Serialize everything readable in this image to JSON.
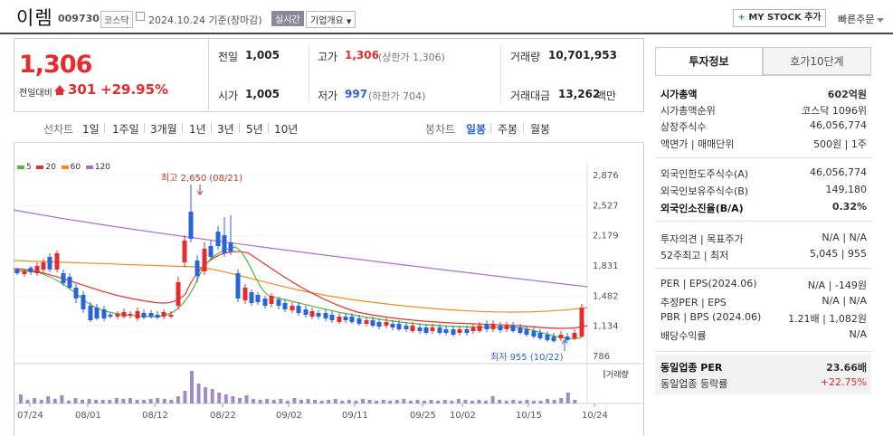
{
  "header": {
    "name": "이렘",
    "code": "009730",
    "market": "코스닥",
    "date": "2024.10.24 기준(장마감)",
    "live": "실시간",
    "overview": "기업개요",
    "mystock": "MY STOCK 추가",
    "quick": "빠른주문"
  },
  "price": {
    "current": "1,306",
    "prev_label": "전일대비",
    "change": "301",
    "pct": "+29.95%"
  },
  "quote": {
    "prev_l": "전일",
    "prev_v": "1,005",
    "open_l": "시가",
    "open_v": "1,005",
    "high_l": "고가",
    "high_v": "1,306",
    "high_sub": "(상한가 1,306)",
    "low_l": "저가",
    "low_v": "997",
    "low_sub": "(하한가 704)",
    "vol_l": "거래량",
    "vol_v": "10,701,953",
    "amt_l": "거래대금",
    "amt_v": "13,262",
    "amt_unit": "백만"
  },
  "tabs": {
    "line_chart": "선차트",
    "periods": [
      "1일",
      "1주일",
      "3개월",
      "1년",
      "3년",
      "5년",
      "10년"
    ],
    "candle_chart": "봉차트",
    "candle": [
      "일봉",
      "주봉",
      "월봉"
    ]
  },
  "legend": [
    {
      "label": "5",
      "color": "#53b53c"
    },
    {
      "label": "20",
      "color": "#e5322d"
    },
    {
      "label": "60",
      "color": "#f28c1a"
    },
    {
      "label": "120",
      "color": "#a96fd2"
    }
  ],
  "chart_data": {
    "type": "candlestick",
    "yticks": [
      "2,876",
      "2,527",
      "2,179",
      "1,831",
      "1,482",
      "1,134",
      "786"
    ],
    "xticks": [
      "07/24",
      "08/01",
      "08/12",
      "08/22",
      "09/02",
      "09/11",
      "09/25",
      "10/02",
      "10/15",
      "10/24"
    ],
    "high_annotation": "최고 2,650 (08/21)",
    "low_annotation": "최저 955 (10/22)",
    "volume_label": "거래량",
    "colors": {
      "up": "#e52b2b",
      "down": "#2b63d8",
      "volume": "#a08cc4"
    }
  },
  "side": {
    "tab_info": "투자정보",
    "tab_hoga": "호가10단계",
    "rows": [
      {
        "l": "시가총액",
        "v": "602억원",
        "bold": true
      },
      {
        "l": "시가총액순위",
        "v": "코스닥 1096위"
      },
      {
        "l": "상장주식수",
        "v": "46,056,774"
      },
      {
        "l": "액면가 | 매매단위",
        "v": "500원 | 1주"
      },
      {
        "l": "외국인한도주식수(A)",
        "v": "46,056,774"
      },
      {
        "l": "외국인보유주식수(B)",
        "v": "149,180"
      },
      {
        "l": "외국인소진율(B/A)",
        "v": "0.32%",
        "bold": true
      },
      {
        "l": "투자의견 | 목표주가",
        "v": "N/A | N/A"
      },
      {
        "l": "52주최고 | 최저",
        "v": "5,045 | 955"
      },
      {
        "l": "PER | EPS(2024.06)",
        "v": "N/A | -149원"
      },
      {
        "l": "추정PER | EPS",
        "v": "N/A | N/A"
      },
      {
        "l": "PBR | BPS (2024.06)",
        "v": "1.21배 | 1,082원"
      },
      {
        "l": "배당수익률",
        "v": "N/A"
      },
      {
        "l": "동일업종 PER",
        "v": "23.66배",
        "bold": true
      },
      {
        "l": "동일업종 등락률",
        "v": "+22.75%",
        "red": true
      }
    ]
  }
}
